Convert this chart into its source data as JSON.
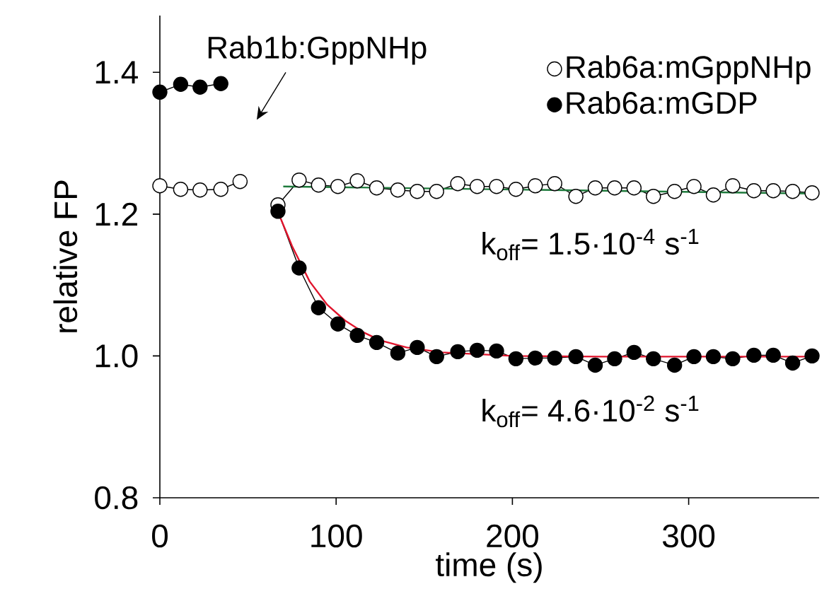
{
  "chart_data": {
    "type": "line",
    "xlabel": "time (s)",
    "ylabel": "relative FP",
    "xlim": [
      0,
      374
    ],
    "ylim": [
      0.8,
      1.48
    ],
    "xticks": [
      0,
      100,
      200,
      300
    ],
    "yticks": [
      {
        "value": 0.8,
        "label": "0.8"
      },
      {
        "value": 1.0,
        "label": "1.0"
      },
      {
        "value": 1.2,
        "label": "1.2"
      },
      {
        "value": 1.4,
        "label": "1.4"
      }
    ],
    "legend": "top right",
    "grid": false,
    "series": [
      {
        "name": "Rab6a:mGppNHp",
        "color": "#ffffff",
        "marker": "circle",
        "x": [
          0,
          11.8,
          22.8,
          34.6,
          45.5,
          56,
          67,
          79,
          90,
          101,
          112,
          123,
          135,
          146,
          157,
          169,
          180,
          191,
          202,
          213,
          224,
          236,
          247,
          258,
          269,
          280,
          292,
          303,
          314,
          325,
          337,
          348,
          359,
          370
        ],
        "values": [
          1.24,
          1.235,
          1.234,
          1.235,
          1.246,
          null,
          1.213,
          1.248,
          1.241,
          1.239,
          1.247,
          1.237,
          1.234,
          1.232,
          1.232,
          1.243,
          1.239,
          1.239,
          1.235,
          1.24,
          1.243,
          1.225,
          1.237,
          1.237,
          1.237,
          1.225,
          1.232,
          1.239,
          1.227,
          1.24,
          1.233,
          1.233,
          1.232,
          1.23
        ]
      },
      {
        "name": "Rab6a:mGDP",
        "color": "#000000",
        "marker": "circle",
        "x": [
          0,
          11.8,
          22.8,
          34.6,
          50,
          67,
          79,
          90,
          101,
          112,
          123,
          135,
          146,
          157,
          169,
          180,
          191,
          202,
          213,
          224,
          236,
          247,
          258,
          269,
          280,
          292,
          303,
          314,
          325,
          337,
          348,
          359,
          370
        ],
        "values": [
          1.372,
          1.383,
          1.379,
          1.384,
          null,
          1.204,
          1.124,
          1.068,
          1.045,
          1.029,
          1.019,
          1.004,
          1.012,
          0.999,
          1.006,
          1.008,
          1.007,
          0.996,
          0.997,
          0.997,
          0.999,
          0.987,
          0.996,
          1.005,
          0.996,
          0.987,
          0.999,
          0.999,
          0.996,
          1.001,
          1.001,
          0.99,
          1.0
        ]
      },
      {
        "color": "#1e7a3c",
        "marker": "none",
        "x": [
          70,
          370
        ],
        "values": [
          1.239,
          1.229
        ]
      },
      {
        "color": "#e0142c",
        "marker": "none",
        "x": [
          67,
          75,
          85,
          95,
          105,
          115,
          125,
          140,
          160,
          200,
          250,
          370
        ],
        "values": [
          1.203,
          1.155,
          1.105,
          1.072,
          1.05,
          1.034,
          1.022,
          1.012,
          1.005,
          1.0,
          0.999,
          0.999
        ]
      }
    ],
    "annotations": [
      "Rab1b:GppNHp",
      "k$_{off}$= 1.5·10$^{-4}$ s$^{-1}$",
      "k$_{off}$= 4.6·10$^{-2}$ s$^{-1}$"
    ]
  }
}
